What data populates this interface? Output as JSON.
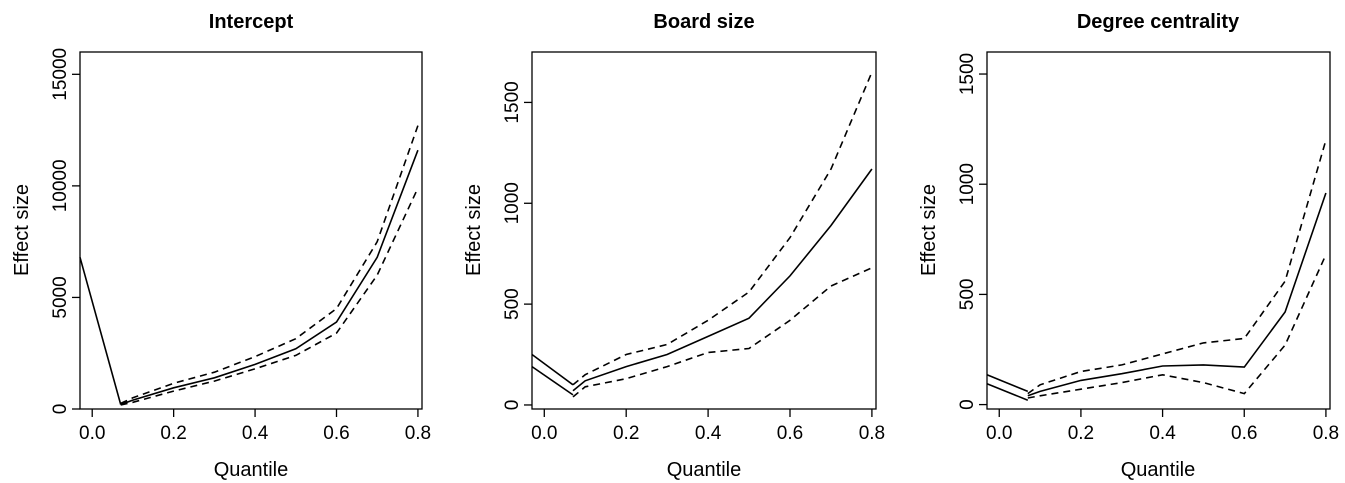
{
  "chart_data": [
    {
      "type": "line",
      "title": "Intercept",
      "xlabel": "Quantile",
      "ylabel": "Effect size",
      "xlim": [
        -0.03,
        0.81
      ],
      "ylim": [
        0,
        16000
      ],
      "xticks": [
        0.0,
        0.2,
        0.4,
        0.6,
        0.8
      ],
      "xtick_labels": [
        "0.0",
        "0.2",
        "0.4",
        "0.6",
        "0.8"
      ],
      "yticks": [
        0,
        5000,
        10000,
        15000
      ],
      "ytick_labels": [
        "0",
        "5000",
        "10000",
        "15000"
      ],
      "grid": false,
      "legend": "none",
      "series": [
        {
          "style": "solid",
          "x": [
            -0.03,
            0.07
          ],
          "y": [
            6800,
            200
          ]
        },
        {
          "style": "solid",
          "x": [
            0.07,
            0.1,
            0.2,
            0.3,
            0.4,
            0.5,
            0.6,
            0.7,
            0.8
          ],
          "y": [
            200,
            400,
            950,
            1400,
            2000,
            2700,
            3900,
            6800,
            11600
          ]
        },
        {
          "style": "dashed",
          "x": [
            0.07,
            0.1,
            0.2,
            0.3,
            0.4,
            0.5,
            0.6,
            0.7,
            0.8
          ],
          "y": [
            250,
            500,
            1150,
            1650,
            2350,
            3150,
            4500,
            7500,
            12700
          ]
        },
        {
          "style": "dashed",
          "x": [
            0.07,
            0.1,
            0.2,
            0.3,
            0.4,
            0.5,
            0.6,
            0.7,
            0.8
          ],
          "y": [
            180,
            300,
            800,
            1250,
            1800,
            2400,
            3400,
            6000,
            9900
          ]
        }
      ]
    },
    {
      "type": "line",
      "title": "Board size",
      "xlabel": "Quantile",
      "ylabel": "Effect size",
      "xlim": [
        -0.03,
        0.81
      ],
      "ylim": [
        -20,
        1750
      ],
      "xticks": [
        0.0,
        0.2,
        0.4,
        0.6,
        0.8
      ],
      "xtick_labels": [
        "0.0",
        "0.2",
        "0.4",
        "0.6",
        "0.8"
      ],
      "yticks": [
        0,
        500,
        1000,
        1500
      ],
      "ytick_labels": [
        "0",
        "500",
        "1000",
        "1500"
      ],
      "grid": false,
      "legend": "none",
      "series": [
        {
          "style": "solid",
          "x": [
            -0.03,
            0.07
          ],
          "y": [
            190,
            50
          ]
        },
        {
          "style": "solid",
          "x": [
            -0.03,
            0.07
          ],
          "y": [
            250,
            100
          ]
        },
        {
          "style": "solid",
          "x": [
            0.07,
            0.1,
            0.2,
            0.3,
            0.4,
            0.5,
            0.6,
            0.7,
            0.8
          ],
          "y": [
            70,
            120,
            190,
            250,
            340,
            430,
            640,
            890,
            1170
          ]
        },
        {
          "style": "dashed",
          "x": [
            0.07,
            0.1,
            0.2,
            0.3,
            0.4,
            0.5,
            0.6,
            0.7,
            0.8
          ],
          "y": [
            100,
            150,
            250,
            300,
            420,
            560,
            830,
            1170,
            1650
          ]
        },
        {
          "style": "dashed",
          "x": [
            0.07,
            0.1,
            0.2,
            0.3,
            0.4,
            0.5,
            0.6,
            0.7,
            0.8
          ],
          "y": [
            40,
            90,
            130,
            190,
            260,
            280,
            420,
            590,
            680
          ]
        }
      ]
    },
    {
      "type": "line",
      "title": "Degree centrality",
      "xlabel": "Quantile",
      "ylabel": "Effect size",
      "xlim": [
        -0.03,
        0.81
      ],
      "ylim": [
        -20,
        1600
      ],
      "xticks": [
        0.0,
        0.2,
        0.4,
        0.6,
        0.8
      ],
      "xtick_labels": [
        "0.0",
        "0.2",
        "0.4",
        "0.6",
        "0.8"
      ],
      "yticks": [
        0,
        500,
        1000,
        1500
      ],
      "ytick_labels": [
        "0",
        "500",
        "1000",
        "1500"
      ],
      "grid": false,
      "legend": "none",
      "series": [
        {
          "style": "solid",
          "x": [
            -0.03,
            0.07
          ],
          "y": [
            95,
            20
          ]
        },
        {
          "style": "solid",
          "x": [
            -0.03,
            0.07
          ],
          "y": [
            135,
            60
          ]
        },
        {
          "style": "solid",
          "x": [
            0.07,
            0.1,
            0.2,
            0.3,
            0.4,
            0.5,
            0.6,
            0.7,
            0.8
          ],
          "y": [
            40,
            60,
            110,
            140,
            175,
            180,
            170,
            420,
            960
          ]
        },
        {
          "style": "dashed",
          "x": [
            0.07,
            0.1,
            0.2,
            0.3,
            0.4,
            0.5,
            0.6,
            0.7,
            0.8
          ],
          "y": [
            50,
            90,
            150,
            180,
            230,
            280,
            300,
            560,
            1200
          ]
        },
        {
          "style": "dashed",
          "x": [
            0.07,
            0.1,
            0.2,
            0.3,
            0.4,
            0.5,
            0.6,
            0.7,
            0.8
          ],
          "y": [
            30,
            40,
            70,
            100,
            135,
            100,
            50,
            270,
            680
          ]
        }
      ]
    }
  ]
}
